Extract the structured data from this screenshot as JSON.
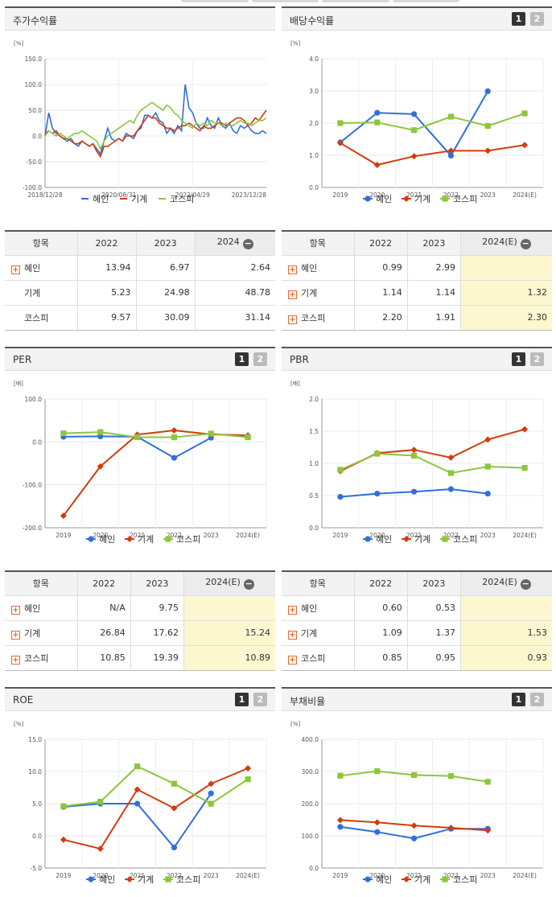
{
  "colors": {
    "heine": "#2f6fdb",
    "gigye": "#d33c0d",
    "kospi": "#8cc63e",
    "highlight": "#fdf7d0"
  },
  "legend": {
    "heine": "혜인",
    "gigye": "기계",
    "kospi": "코스피"
  },
  "toggle": {
    "one": "1",
    "two": "2"
  },
  "panels": {
    "stock_return": {
      "title": "주가수익률",
      "unit": "[%]"
    },
    "dividend": {
      "title": "배당수익률",
      "unit": "[%]"
    },
    "per": {
      "title": "PER",
      "unit": "[배]"
    },
    "pbr": {
      "title": "PBR",
      "unit": "[배]"
    },
    "roe": {
      "title": "ROE",
      "unit": "[%]"
    },
    "debt": {
      "title": "부채비율",
      "unit": "[%]"
    }
  },
  "tables": {
    "stock_return": {
      "headers": [
        "항목",
        "2022",
        "2023",
        "2024"
      ],
      "rows": [
        {
          "name": "혜인",
          "expand": true,
          "v": [
            "13.94",
            "6.97",
            "2.64"
          ]
        },
        {
          "name": "기계",
          "expand": false,
          "v": [
            "5.23",
            "24.98",
            "48.78"
          ]
        },
        {
          "name": "코스피",
          "expand": false,
          "v": [
            "9.57",
            "30.09",
            "31.14"
          ]
        }
      ]
    },
    "dividend": {
      "headers": [
        "항목",
        "2022",
        "2023",
        "2024(E)"
      ],
      "rows": [
        {
          "name": "혜인",
          "expand": true,
          "v": [
            "0.99",
            "2.99",
            ""
          ]
        },
        {
          "name": "기계",
          "expand": true,
          "v": [
            "1.14",
            "1.14",
            "1.32"
          ]
        },
        {
          "name": "코스피",
          "expand": true,
          "v": [
            "2.20",
            "1.91",
            "2.30"
          ]
        }
      ]
    },
    "per": {
      "headers": [
        "항목",
        "2022",
        "2023",
        "2024(E)"
      ],
      "rows": [
        {
          "name": "혜인",
          "expand": true,
          "v": [
            "N/A",
            "9.75",
            ""
          ]
        },
        {
          "name": "기계",
          "expand": true,
          "v": [
            "26.84",
            "17.62",
            "15.24"
          ]
        },
        {
          "name": "코스피",
          "expand": true,
          "v": [
            "10.85",
            "19.39",
            "10.89"
          ]
        }
      ]
    },
    "pbr": {
      "headers": [
        "항목",
        "2022",
        "2023",
        "2024(E)"
      ],
      "rows": [
        {
          "name": "혜인",
          "expand": true,
          "v": [
            "0.60",
            "0.53",
            ""
          ]
        },
        {
          "name": "기계",
          "expand": true,
          "v": [
            "1.09",
            "1.37",
            "1.53"
          ]
        },
        {
          "name": "코스피",
          "expand": true,
          "v": [
            "0.85",
            "0.95",
            "0.93"
          ]
        }
      ]
    }
  },
  "chart_data": [
    {
      "id": "stock_return",
      "type": "line",
      "ylim": [
        -100,
        150
      ],
      "yticks": [
        "150.0",
        "100.0",
        "50.0",
        "0.0",
        "-50.0",
        "-100.0"
      ],
      "xticks": [
        "2018/12/28",
        "2020/08/31",
        "2022/04/29",
        "2023/12/28"
      ],
      "series": [
        {
          "name": "혜인",
          "values": [
            0,
            45,
            15,
            5,
            0,
            -5,
            -10,
            -5,
            -15,
            -20,
            -10,
            -15,
            -20,
            -15,
            -25,
            -35,
            -10,
            15,
            -5,
            -10,
            -5,
            -10,
            5,
            0,
            -5,
            10,
            15,
            40,
            40,
            35,
            45,
            30,
            25,
            5,
            15,
            5,
            20,
            10,
            100,
            55,
            45,
            25,
            15,
            15,
            35,
            20,
            15,
            35,
            20,
            15,
            25,
            10,
            5,
            20,
            15,
            20,
            10,
            5,
            5,
            10,
            5
          ]
        },
        {
          "name": "기계",
          "values": [
            5,
            10,
            5,
            10,
            0,
            -5,
            -5,
            -10,
            -15,
            -15,
            -10,
            -15,
            -20,
            -15,
            -30,
            -40,
            -20,
            -20,
            -15,
            -10,
            -5,
            -10,
            0,
            0,
            0,
            10,
            20,
            30,
            40,
            35,
            35,
            25,
            20,
            15,
            15,
            10,
            15,
            20,
            20,
            25,
            20,
            15,
            10,
            20,
            15,
            15,
            20,
            25,
            25,
            20,
            25,
            30,
            35,
            35,
            30,
            20,
            25,
            35,
            30,
            40,
            50
          ]
        },
        {
          "name": "코스피",
          "values": [
            0,
            10,
            5,
            0,
            5,
            0,
            -5,
            0,
            5,
            5,
            10,
            5,
            0,
            -5,
            -10,
            -25,
            -10,
            0,
            5,
            10,
            15,
            20,
            25,
            30,
            25,
            40,
            50,
            55,
            60,
            65,
            60,
            55,
            50,
            60,
            55,
            45,
            40,
            30,
            25,
            20,
            15,
            25,
            20,
            25,
            20,
            30,
            25,
            25,
            20,
            25,
            20,
            20,
            25,
            30,
            25,
            25,
            20,
            25,
            30,
            30,
            35
          ]
        }
      ]
    },
    {
      "id": "dividend",
      "type": "line",
      "ylim": [
        0,
        4
      ],
      "yticks": [
        "4.0",
        "3.0",
        "2.0",
        "1.0",
        "0.0"
      ],
      "categories": [
        "2019",
        "2020",
        "2021",
        "2022",
        "2023",
        "2024(E)"
      ],
      "series": [
        {
          "name": "혜인",
          "values": [
            1.4,
            2.32,
            2.28,
            0.99,
            2.99,
            null
          ]
        },
        {
          "name": "기계",
          "values": [
            1.38,
            0.7,
            0.97,
            1.14,
            1.14,
            1.32
          ]
        },
        {
          "name": "코스피",
          "values": [
            2.0,
            2.02,
            1.78,
            2.2,
            1.91,
            2.3
          ]
        }
      ]
    },
    {
      "id": "per",
      "type": "line",
      "ylim": [
        -200,
        100
      ],
      "yticks": [
        "100.0",
        "0.0",
        "-100.0",
        "-200.0"
      ],
      "categories": [
        "2019",
        "2020",
        "2021",
        "2022",
        "2023",
        "2024(E)"
      ],
      "series": [
        {
          "name": "혜인",
          "values": [
            12,
            13,
            12,
            -37,
            9.75,
            null
          ]
        },
        {
          "name": "기계",
          "values": [
            -172,
            -57,
            17,
            26.84,
            17.62,
            15.24
          ]
        },
        {
          "name": "코스피",
          "values": [
            20,
            23,
            11,
            10.85,
            19.39,
            10.89
          ]
        }
      ]
    },
    {
      "id": "pbr",
      "type": "line",
      "ylim": [
        0,
        2
      ],
      "yticks": [
        "2.0",
        "1.5",
        "1.0",
        "0.5",
        "0.0"
      ],
      "categories": [
        "2019",
        "2020",
        "2021",
        "2022",
        "2023",
        "2024(E)"
      ],
      "series": [
        {
          "name": "혜인",
          "values": [
            0.48,
            0.53,
            0.56,
            0.6,
            0.53,
            null
          ]
        },
        {
          "name": "기계",
          "values": [
            0.88,
            1.16,
            1.21,
            1.09,
            1.37,
            1.53
          ]
        },
        {
          "name": "코스피",
          "values": [
            0.9,
            1.15,
            1.12,
            0.85,
            0.95,
            0.93
          ]
        }
      ]
    },
    {
      "id": "roe",
      "type": "line",
      "ylim": [
        -5,
        15
      ],
      "yticks": [
        "15.0",
        "10.0",
        "5.0",
        "0.0",
        "-5.0"
      ],
      "categories": [
        "2019",
        "2020",
        "2021",
        "2022",
        "2023",
        "2024(E)"
      ],
      "series": [
        {
          "name": "혜인",
          "values": [
            4.5,
            5.0,
            5.0,
            -1.8,
            6.6,
            null
          ]
        },
        {
          "name": "기계",
          "values": [
            -0.6,
            -2.0,
            7.2,
            4.3,
            8.1,
            10.5
          ]
        },
        {
          "name": "코스피",
          "values": [
            4.6,
            5.3,
            10.8,
            8.1,
            5.0,
            8.8
          ]
        }
      ]
    },
    {
      "id": "debt",
      "type": "line",
      "ylim": [
        0,
        400
      ],
      "yticks": [
        "400.0",
        "300.0",
        "200.0",
        "100.0",
        "0.0"
      ],
      "categories": [
        "2019",
        "2020",
        "2021",
        "2022",
        "2023",
        "2024(E)"
      ],
      "series": [
        {
          "name": "혜인",
          "values": [
            128,
            112,
            92,
            122,
            122,
            null
          ]
        },
        {
          "name": "기계",
          "values": [
            149,
            142,
            132,
            125,
            117,
            null
          ]
        },
        {
          "name": "코스피",
          "values": [
            287,
            301,
            289,
            286,
            268,
            null
          ]
        }
      ]
    }
  ]
}
